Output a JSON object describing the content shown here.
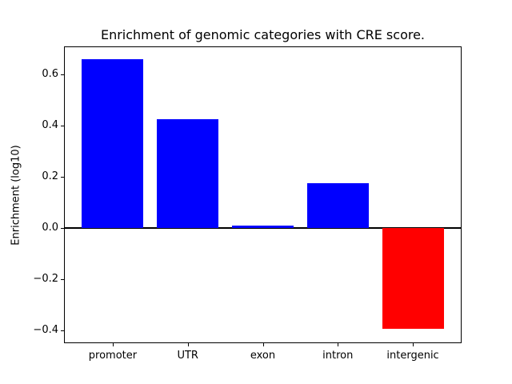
{
  "figure": {
    "title": "Enrichment of genomic categories with CRE score.",
    "ylabel": "Enrichment (log10)"
  },
  "chart_data": {
    "type": "bar",
    "title": "Enrichment of genomic categories with CRE score.",
    "xlabel": "",
    "ylabel": "Enrichment (log10)",
    "categories": [
      "promoter",
      "UTR",
      "exon",
      "intron",
      "intergenic"
    ],
    "values": [
      0.66,
      0.425,
      0.01,
      0.175,
      -0.395
    ],
    "positive_color": "#0000ff",
    "negative_color": "#ff0000",
    "bar_colors": [
      "#0000ff",
      "#0000ff",
      "#0000ff",
      "#0000ff",
      "#ff0000"
    ],
    "yticks": [
      0.6,
      0.4,
      0.2,
      0.0,
      -0.2,
      -0.4
    ],
    "ytick_labels": [
      "0.6",
      "0.4",
      "0.2",
      "0.0",
      "−0.2",
      "−0.4"
    ],
    "ylim": [
      -0.4515,
      0.7095
    ],
    "xlim": [
      -0.65,
      4.65
    ],
    "zero_line": true,
    "grid": false,
    "legend": null,
    "axis_color": "#000000",
    "background_color": "#ffffff"
  }
}
